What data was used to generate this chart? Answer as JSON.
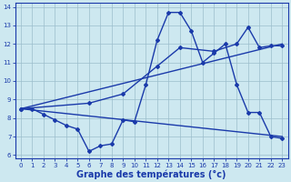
{
  "bg_color": "#cde8f0",
  "line_color": "#1a3aaa",
  "grid_color": "#9bbdcc",
  "xlabel": "Graphe des températures (°c)",
  "xlabel_fontsize": 7,
  "xlim": [
    -0.5,
    23.5
  ],
  "ylim": [
    5.8,
    14.2
  ],
  "yticks": [
    6,
    7,
    8,
    9,
    10,
    11,
    12,
    13,
    14
  ],
  "xticks": [
    0,
    1,
    2,
    3,
    4,
    5,
    6,
    7,
    8,
    9,
    10,
    11,
    12,
    13,
    14,
    15,
    16,
    17,
    18,
    19,
    20,
    21,
    22,
    23
  ],
  "series1_x": [
    0,
    1,
    2,
    3,
    4,
    5,
    6,
    7,
    8,
    9,
    10,
    11,
    12,
    13,
    14,
    15,
    16,
    17,
    18,
    19,
    20,
    21,
    22,
    23
  ],
  "series1_y": [
    8.5,
    8.5,
    8.2,
    7.9,
    7.6,
    7.4,
    6.2,
    6.5,
    6.6,
    7.9,
    7.8,
    9.8,
    12.2,
    13.7,
    13.7,
    12.7,
    11.0,
    11.5,
    12.0,
    9.8,
    8.3,
    8.3,
    7.0,
    6.9
  ],
  "series2_x": [
    0,
    6,
    9,
    12,
    14,
    17,
    19,
    20,
    21,
    22,
    23
  ],
  "series2_y": [
    8.5,
    8.8,
    9.3,
    10.8,
    11.8,
    11.6,
    12.0,
    12.9,
    11.8,
    11.9,
    11.9
  ],
  "series3_x": [
    0,
    23
  ],
  "series3_y": [
    8.5,
    12.0
  ],
  "series4_x": [
    0,
    23
  ],
  "series4_y": [
    8.5,
    7.0
  ]
}
